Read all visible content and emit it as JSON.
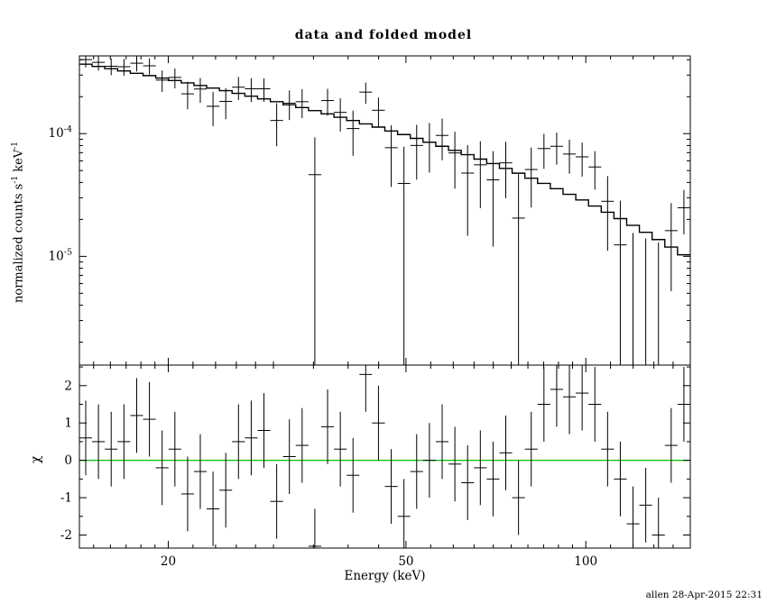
{
  "title": "data and folded model",
  "footer": "allen 28-Apr-2015 22:31",
  "axes": {
    "xlabel": "Energy (keV)",
    "bottom_ylabel": "χ",
    "top_ylabel_segments": [
      {
        "text": "normalized counts s",
        "sup": false
      },
      {
        "text": "-1",
        "sup": true
      },
      {
        "text": " keV",
        "sup": false
      },
      {
        "text": "-1",
        "sup": true
      }
    ]
  },
  "colors": {
    "foreground": "#000000",
    "model_line": "#000000",
    "data_points": "#000000",
    "zero_line": "#00C000",
    "background": "#ffffff"
  },
  "chart_data": [
    {
      "type": "line",
      "name": "spectrum",
      "title": "data and folded model",
      "ylabel": "normalized counts s^-1 keV^-1",
      "xscale": "log",
      "yscale": "log",
      "xlim": [
        14.2,
        149.6
      ],
      "ylim": [
        1.3e-06,
        0.00043
      ],
      "grid": false,
      "xticks": {
        "labeled": [
          {
            "v": 20,
            "label": "20"
          },
          {
            "v": 50,
            "label": "50"
          },
          {
            "v": 100,
            "label": "100"
          }
        ],
        "minor": [
          15,
          16,
          17,
          18,
          19,
          22,
          24,
          26,
          28,
          30,
          35,
          40,
          45,
          55,
          60,
          65,
          70,
          75,
          80,
          85,
          90,
          95,
          110,
          120,
          130,
          140
        ]
      },
      "yticks": {
        "labeled": [
          {
            "v": 0.0001,
            "base": "10",
            "exp": "-4"
          },
          {
            "v": 1e-05,
            "base": "10",
            "exp": "-5"
          }
        ]
      },
      "bin_edges_kev": [
        14.2,
        14.91,
        15.66,
        16.45,
        17.28,
        18.15,
        19.06,
        20.02,
        21.03,
        22.08,
        23.19,
        24.36,
        25.58,
        26.87,
        28.22,
        29.64,
        31.13,
        32.69,
        34.34,
        36.06,
        37.88,
        39.78,
        41.78,
        43.88,
        46.09,
        48.41,
        50.84,
        53.4,
        56.09,
        58.91,
        61.87,
        64.98,
        68.25,
        71.68,
        75.28,
        79.07,
        83.04,
        87.22,
        91.6,
        96.21,
        101.05,
        106.13,
        111.46,
        117.06,
        122.94,
        129.12,
        135.61,
        142.42,
        149.58
      ],
      "series": [
        {
          "name": "data",
          "style": "errorbar-cross",
          "rate": [
            0.000401,
            0.000381,
            0.000354,
            0.000351,
            0.000375,
            0.000357,
            0.000273,
            0.000287,
            0.000211,
            0.000231,
            0.000167,
            0.000183,
            0.000239,
            0.000232,
            0.000232,
            0.000128,
            0.000177,
            0.000182,
            4.63e-05,
            0.000186,
            0.000149,
            0.00011,
            0.000218,
            0.000155,
            7.68e-05,
            3.93e-05,
            8.01e-05,
            8.51e-05,
            9.67e-05,
            6.96e-05,
            4.77e-05,
            5.57e-05,
            4.2e-05,
            5.78e-05,
            2.05e-05,
            5.1e-05,
            7.56e-05,
            7.89e-05,
            6.82e-05,
            6.47e-05,
            5.35e-05,
            2.81e-05,
            1.24e-05,
            1e-06,
            1e-06,
            1e-06,
            1.62e-05,
            2.49e-05
          ],
          "err": [
            5.5e-05,
            5.5e-05,
            5.5e-05,
            5.5e-05,
            5.4e-05,
            5.4e-05,
            5.4e-05,
            5.3e-05,
            5.3e-05,
            5.3e-05,
            5.2e-05,
            5.2e-05,
            5.1e-05,
            5.1e-05,
            5e-05,
            4.9e-05,
            4.8e-05,
            4.8e-05,
            4.7e-05,
            4.6e-05,
            4.5e-05,
            4.4e-05,
            4.3e-05,
            4.2e-05,
            4e-05,
            3.9e-05,
            3.8e-05,
            3.7e-05,
            3.6e-05,
            3.4e-05,
            3.3e-05,
            3.1e-05,
            3e-05,
            2.8e-05,
            2.7e-05,
            2.6e-05,
            2.4e-05,
            2.3e-05,
            2.1e-05,
            2e-05,
            1.85e-05,
            1.7e-05,
            1.6e-05,
            1.45e-05,
            1.3e-05,
            1.2e-05,
            1.1e-05,
            9.8e-06
          ]
        },
        {
          "name": "folded model",
          "style": "histogram-steps",
          "values": [
            0.000368,
            0.000353,
            0.000338,
            0.000324,
            0.00031,
            0.000297,
            0.000284,
            0.000271,
            0.000259,
            0.000247,
            0.000235,
            0.000224,
            0.000213,
            0.000202,
            0.000192,
            0.000182,
            0.000172,
            0.000163,
            0.000154,
            0.000145,
            0.000136,
            0.000128,
            0.00012,
            0.000113,
            0.000105,
            9.83e-05,
            9.15e-05,
            8.51e-05,
            7.89e-05,
            7.3e-05,
            6.74e-05,
            6.2e-05,
            5.7e-05,
            5.21e-05,
            4.76e-05,
            4.33e-05,
            3.93e-05,
            3.56e-05,
            3.2e-05,
            2.88e-05,
            2.57e-05,
            2.29e-05,
            2.03e-05,
            1.79e-05,
            1.57e-05,
            1.37e-05,
            1.19e-05,
            1.03e-05
          ]
        }
      ]
    },
    {
      "type": "scatter",
      "name": "residuals",
      "ylabel": "χ",
      "xlabel": "Energy (keV)",
      "xscale": "log",
      "yscale": "linear",
      "xlim": [
        14.2,
        149.6
      ],
      "ylim": [
        -2.35,
        2.55
      ],
      "grid": false,
      "yticks": {
        "labeled": [
          {
            "v": -2,
            "label": "-2"
          },
          {
            "v": -1,
            "label": "-1"
          },
          {
            "v": 0,
            "label": "0"
          },
          {
            "v": 1,
            "label": "1"
          },
          {
            "v": 2,
            "label": "2"
          }
        ],
        "minor": [
          -1.5,
          -0.5,
          0.5,
          1.5,
          2.5
        ]
      },
      "zero_line_y": 0,
      "chi": [
        0.6,
        0.5,
        0.3,
        0.5,
        1.2,
        1.1,
        -0.2,
        0.3,
        -0.9,
        -0.3,
        -1.3,
        -0.8,
        0.5,
        0.6,
        0.8,
        -1.1,
        0.1,
        0.4,
        -2.3,
        0.9,
        0.3,
        -0.4,
        2.3,
        1.0,
        -0.7,
        -1.5,
        -0.3,
        0.0,
        0.5,
        -0.1,
        -0.6,
        -0.2,
        -0.5,
        0.2,
        -1.0,
        0.3,
        1.5,
        1.9,
        1.7,
        1.8,
        1.5,
        0.3,
        -0.5,
        -1.7,
        -1.2,
        -2.0,
        0.4,
        1.5
      ],
      "chi_err": 1
    }
  ]
}
